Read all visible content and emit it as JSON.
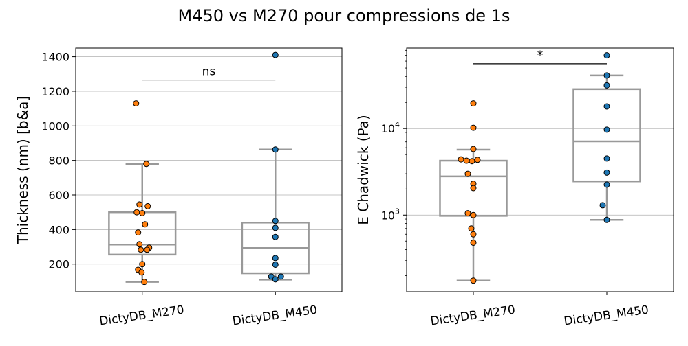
{
  "suptitle": "M450 vs M270 pour compressions de 1s",
  "colors": {
    "box": "#999999",
    "grid": "#b0b0b0",
    "DictyDB_M270": "#ff7f0e",
    "DictyDB_M450": "#1f77b4",
    "point_edge": "#000000"
  },
  "chart_data": [
    {
      "type": "box",
      "ylabel": "Thickness (nm) [b&a]",
      "yscale": "linear",
      "ylim": [
        40,
        1450
      ],
      "yticks": [
        200,
        400,
        600,
        800,
        1000,
        1200,
        1400
      ],
      "ytick_labels": [
        "200",
        "400",
        "600",
        "800",
        "1000",
        "1200",
        "1400"
      ],
      "grid": "y",
      "categories": [
        "DictyDB_M270",
        "DictyDB_M450"
      ],
      "boxes": [
        {
          "q1": 255,
          "median": 313,
          "q3": 500,
          "whisker_low": 97,
          "whisker_high": 780
        },
        {
          "q1": 147,
          "median": 293,
          "q3": 440,
          "whisker_low": 110,
          "whisker_high": 863
        }
      ],
      "points": [
        [
          1130,
          780,
          545,
          535,
          500,
          495,
          430,
          383,
          315,
          295,
          283,
          283,
          200,
          167,
          152,
          97
        ],
        [
          1410,
          863,
          450,
          410,
          357,
          235,
          197,
          128,
          128,
          112
        ]
      ],
      "annotation": {
        "label": "ns",
        "y": 1265
      }
    },
    {
      "type": "box",
      "ylabel": "E Chadwick (Pa)",
      "yscale": "log",
      "ylim": [
        130,
        85000
      ],
      "yticks": [
        1000,
        10000
      ],
      "ytick_labels": [
        "10^3",
        "10^4"
      ],
      "grid": "y",
      "categories": [
        "DictyDB_M270",
        "DictyDB_M450"
      ],
      "boxes": [
        {
          "q1": 980,
          "median": 2800,
          "q3": 4250,
          "whisker_low": 175,
          "whisker_high": 5700
        },
        {
          "q1": 2450,
          "median": 7100,
          "q3": 28500,
          "whisker_low": 880,
          "whisker_high": 41000
        }
      ],
      "points": [
        [
          19500,
          10200,
          5800,
          4400,
          4250,
          4200,
          4350,
          3000,
          2300,
          2050,
          1050,
          1000,
          700,
          600,
          480,
          175
        ],
        [
          70000,
          41000,
          31500,
          18000,
          9700,
          4500,
          3100,
          2250,
          1300,
          880
        ]
      ],
      "annotation": {
        "label": "*",
        "y": 56000
      }
    }
  ]
}
